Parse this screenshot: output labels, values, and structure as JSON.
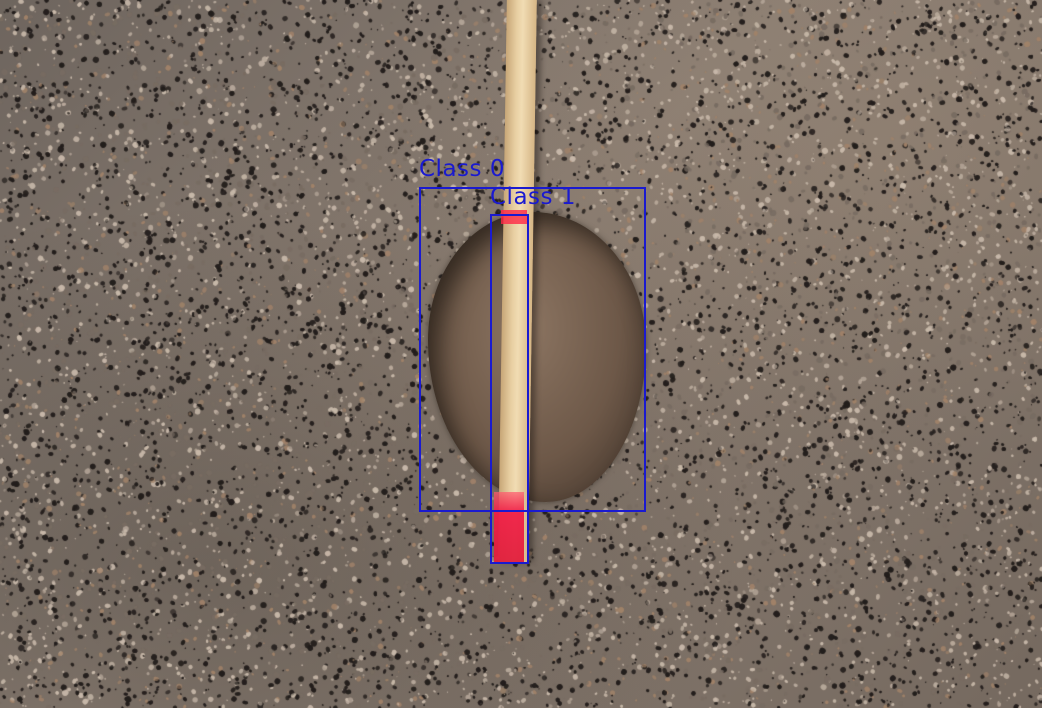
{
  "image": {
    "description_hidden": true
  },
  "annotations": {
    "color": "#1a1ad0",
    "boxes": [
      {
        "label": "Class 0"
      },
      {
        "label": "Class 1"
      }
    ]
  }
}
